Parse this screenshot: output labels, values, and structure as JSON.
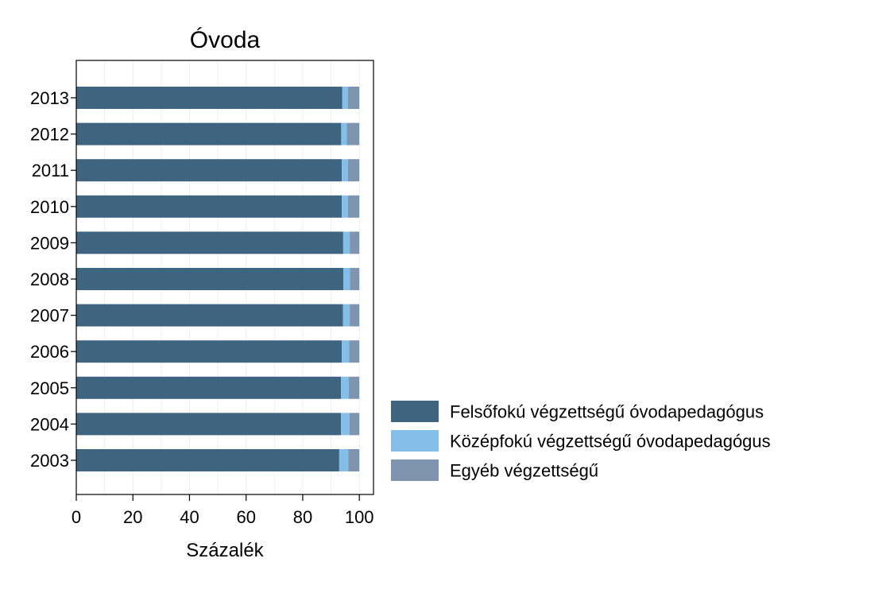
{
  "chart_data": {
    "type": "bar",
    "orientation": "horizontal",
    "stacked": true,
    "title": "Óvoda",
    "xlabel": "Százalék",
    "ylabel": "",
    "xlim": [
      0,
      105
    ],
    "x_ticks": [
      0,
      20,
      40,
      60,
      80,
      100
    ],
    "grid": true,
    "legend_position": "right",
    "categories": [
      "2013",
      "2012",
      "2011",
      "2010",
      "2009",
      "2008",
      "2007",
      "2006",
      "2005",
      "2004",
      "2003"
    ],
    "series": [
      {
        "name": "Felsőfokú végzettségű óvodapedagógus",
        "color": "#3e6480",
        "values": [
          94.0,
          93.6,
          93.8,
          93.8,
          94.3,
          94.4,
          94.2,
          93.8,
          93.5,
          93.5,
          92.9
        ]
      },
      {
        "name": "Középfokú végzettségű óvodapedagógus",
        "color": "#84bfe9",
        "values": [
          2.0,
          2.0,
          2.2,
          2.2,
          2.3,
          2.3,
          2.4,
          2.6,
          2.8,
          3.0,
          3.2
        ]
      },
      {
        "name": "Egyéb végzettségű",
        "color": "#7f94ae",
        "values": [
          4.0,
          4.4,
          4.0,
          4.0,
          3.4,
          3.3,
          3.4,
          3.6,
          3.7,
          3.5,
          3.9
        ]
      }
    ]
  }
}
